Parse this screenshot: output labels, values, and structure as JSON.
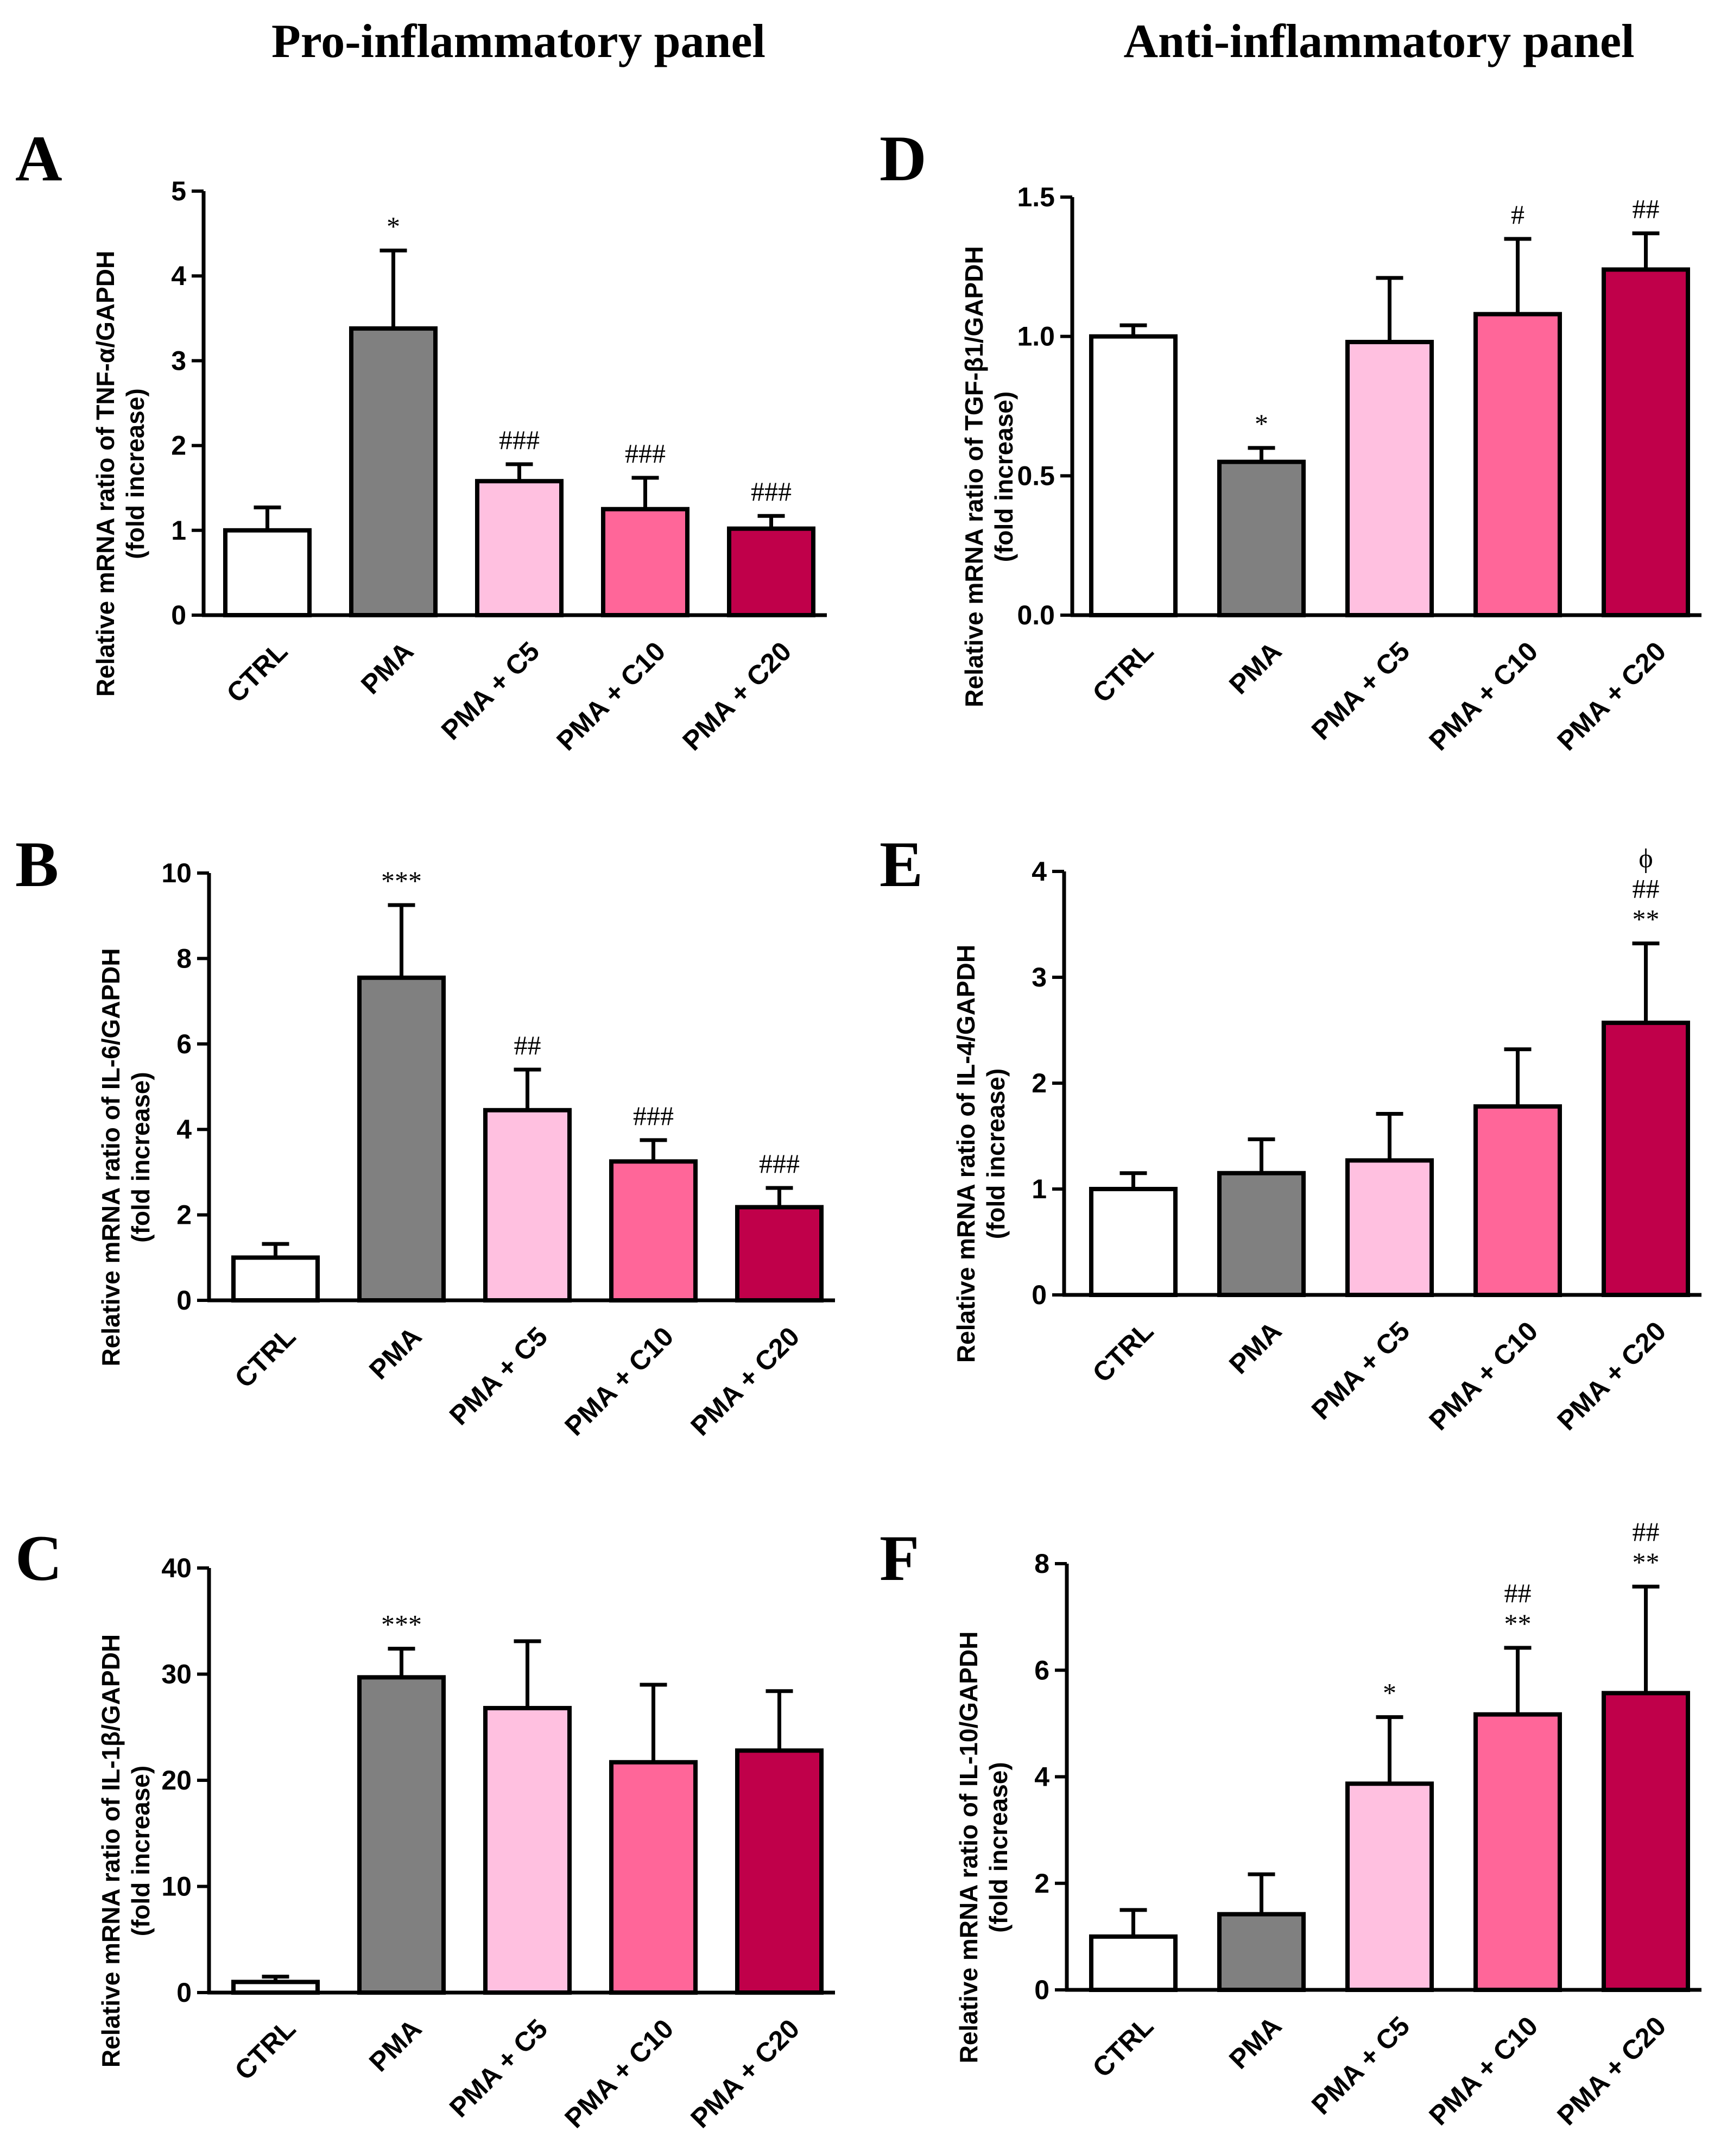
{
  "headers": {
    "left": "Pro-inflammatory panel",
    "right": "Anti-inflammatory panel"
  },
  "colors": {
    "CTRL": "#ffffff",
    "PMA": "#808080",
    "PMA + C5": "#ffc0e0",
    "PMA + C10": "#ff6699",
    "PMA + C20": "#c0004a"
  },
  "chart_data": [
    {
      "id": "A",
      "type": "bar",
      "categories": [
        "CTRL",
        "PMA",
        "PMA + C5",
        "PMA + C10",
        "PMA + C20"
      ],
      "values": [
        1.0,
        3.38,
        1.58,
        1.25,
        1.02
      ],
      "errors": [
        0.27,
        0.92,
        0.2,
        0.37,
        0.15
      ],
      "annotations": [
        [],
        [
          "*"
        ],
        [
          "###"
        ],
        [
          "###"
        ],
        [
          "###"
        ]
      ],
      "ylabel_line1": "Relative mRNA ratio of TNF-α/GAPDH",
      "ylabel_line2": "(fold increase)",
      "ylim": [
        0,
        5
      ],
      "yticks": [
        "0",
        "1",
        "2",
        "3",
        "4",
        "5"
      ],
      "ytick_values": [
        0,
        1,
        2,
        3,
        4,
        5
      ]
    },
    {
      "id": "B",
      "type": "bar",
      "categories": [
        "CTRL",
        "PMA",
        "PMA + C5",
        "PMA + C10",
        "PMA + C20"
      ],
      "values": [
        1.0,
        7.55,
        4.45,
        3.25,
        2.18
      ],
      "errors": [
        0.32,
        1.7,
        0.95,
        0.5,
        0.45
      ],
      "annotations": [
        [],
        [
          "***"
        ],
        [
          "##"
        ],
        [
          "###"
        ],
        [
          "###"
        ]
      ],
      "ylabel_line1": "Relative mRNA ratio of IL-6/GAPDH",
      "ylabel_line2": "(fold increase)",
      "ylim": [
        0,
        10
      ],
      "yticks": [
        "0",
        "2",
        "4",
        "6",
        "8",
        "10"
      ],
      "ytick_values": [
        0,
        2,
        4,
        6,
        8,
        10
      ]
    },
    {
      "id": "C",
      "type": "bar",
      "categories": [
        "CTRL",
        "PMA",
        "PMA + C5",
        "PMA + C10",
        "PMA + C20"
      ],
      "values": [
        1.0,
        29.7,
        26.8,
        21.7,
        22.8
      ],
      "errors": [
        0.5,
        2.7,
        6.3,
        7.3,
        5.6
      ],
      "annotations": [
        [],
        [
          "***"
        ],
        [],
        [],
        []
      ],
      "ylabel_line1": "Relative mRNA ratio of IL-1β/GAPDH",
      "ylabel_line2": "(fold increase)",
      "ylim": [
        0,
        40
      ],
      "yticks": [
        "0",
        "10",
        "20",
        "30",
        "40"
      ],
      "ytick_values": [
        0,
        10,
        20,
        30,
        40
      ]
    },
    {
      "id": "D",
      "type": "bar",
      "categories": [
        "CTRL",
        "PMA",
        "PMA + C5",
        "PMA + C10",
        "PMA + C20"
      ],
      "values": [
        1.0,
        0.55,
        0.98,
        1.08,
        1.24
      ],
      "errors": [
        0.04,
        0.05,
        0.23,
        0.27,
        0.13
      ],
      "annotations": [
        [],
        [
          "*"
        ],
        [],
        [
          "#"
        ],
        [
          "##"
        ]
      ],
      "ylabel_line1": "Relative mRNA ratio of TGF-β1/GAPDH",
      "ylabel_line2": "(fold increase)",
      "ylim": [
        0,
        1.5
      ],
      "yticks": [
        "0.0",
        "0.5",
        "1.0",
        "1.5"
      ],
      "ytick_values": [
        0,
        0.5,
        1.0,
        1.5
      ]
    },
    {
      "id": "E",
      "type": "bar",
      "categories": [
        "CTRL",
        "PMA",
        "PMA + C5",
        "PMA + C10",
        "PMA + C20"
      ],
      "values": [
        1.0,
        1.15,
        1.27,
        1.78,
        2.57
      ],
      "errors": [
        0.15,
        0.32,
        0.44,
        0.54,
        0.75
      ],
      "annotations": [
        [],
        [],
        [],
        [],
        [
          "ϕ",
          "##",
          "**"
        ]
      ],
      "ylabel_line1": "Relative mRNA ratio of IL-4/GAPDH",
      "ylabel_line2": "(fold increase)",
      "ylim": [
        0,
        4
      ],
      "yticks": [
        "0",
        "1",
        "2",
        "3",
        "4"
      ],
      "ytick_values": [
        0,
        1,
        2,
        3,
        4
      ]
    },
    {
      "id": "F",
      "type": "bar",
      "categories": [
        "CTRL",
        "PMA",
        "PMA + C5",
        "PMA + C10",
        "PMA + C20"
      ],
      "values": [
        1.0,
        1.42,
        3.87,
        5.17,
        5.57
      ],
      "errors": [
        0.5,
        0.75,
        1.25,
        1.25,
        2.0
      ],
      "annotations": [
        [],
        [],
        [
          "*"
        ],
        [
          "##",
          "**"
        ],
        [
          "##",
          "**"
        ]
      ],
      "ylabel_line1": "Relative mRNA ratio of IL-10/GAPDH",
      "ylabel_line2": "(fold increase)",
      "ylim": [
        0,
        8
      ],
      "yticks": [
        "0",
        "2",
        "4",
        "6",
        "8"
      ],
      "ytick_values": [
        0,
        2,
        4,
        6,
        8
      ]
    }
  ]
}
